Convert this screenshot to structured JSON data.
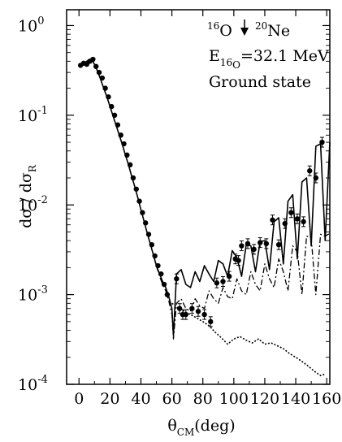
{
  "chart_data": {
    "type": "scatter",
    "xlabel": "θ",
    "xlabel_sub": "CM",
    "xlabel_suffix": "(deg)",
    "ylabel": "dσ / dσ",
    "ylabel_sub": "R",
    "log_y": true,
    "xlim": [
      -8,
      162
    ],
    "ylim": [
      0.0001,
      1.5
    ],
    "x_ticks": [
      0,
      20,
      40,
      60,
      80,
      100,
      120,
      140,
      160
    ],
    "y_ticks": [
      {
        "value": 1,
        "base": "10",
        "exp": "0"
      },
      {
        "value": 0.1,
        "base": "10",
        "exp": "-1"
      },
      {
        "value": 0.01,
        "base": "10",
        "exp": "-2"
      },
      {
        "value": 0.001,
        "base": "10",
        "exp": "-3"
      },
      {
        "value": 0.0001,
        "base": "10",
        "exp": "-4"
      }
    ],
    "annotations": {
      "reaction_sup1": "16",
      "reaction_sym1": "O",
      "reaction_sup2": "20",
      "reaction_sym2": "Ne",
      "energy_main": "E",
      "energy_sub1": "16",
      "energy_sub2": "O",
      "energy_value": "=32.1 MeV",
      "state": "Ground state"
    },
    "series": [
      {
        "style": "points",
        "x": [
          1,
          3,
          5,
          7,
          9,
          11,
          13,
          15,
          17,
          19,
          21,
          23,
          25,
          27,
          29,
          31,
          33,
          35,
          37,
          39,
          41,
          43,
          45,
          47,
          49,
          51,
          53,
          55,
          57,
          63,
          65,
          67,
          69,
          73,
          77,
          81,
          85,
          89,
          93,
          97,
          101,
          103,
          105,
          109,
          113,
          117,
          121,
          125,
          129,
          133,
          137,
          141,
          145,
          149,
          153,
          157
        ],
        "y": [
          0.36,
          0.38,
          0.37,
          0.4,
          0.42,
          0.35,
          0.3,
          0.26,
          0.2,
          0.16,
          0.125,
          0.1,
          0.078,
          0.06,
          0.048,
          0.036,
          0.028,
          0.02,
          0.015,
          0.011,
          0.0082,
          0.0063,
          0.0047,
          0.0036,
          0.0027,
          0.0021,
          0.0017,
          0.0013,
          0.001,
          0.0015,
          0.0007,
          0.0006,
          0.0006,
          0.0007,
          0.00065,
          0.0006,
          0.0005,
          0.00135,
          0.0014,
          0.0016,
          0.0025,
          0.0024,
          0.0035,
          0.0037,
          0.0032,
          0.0038,
          0.0037,
          0.0068,
          0.0036,
          0.0062,
          0.0082,
          0.007,
          0.0065,
          0.024,
          0.02,
          0.05
        ]
      },
      {
        "style": "solid",
        "x": [
          0,
          2,
          4,
          6,
          8,
          10,
          12,
          14,
          16,
          18,
          20,
          22,
          24,
          26,
          28,
          30,
          32,
          34,
          36,
          38,
          40,
          42,
          44,
          46,
          48,
          50,
          52,
          54,
          56,
          58,
          60,
          61,
          63,
          66,
          69,
          72,
          75,
          78,
          81,
          84,
          87,
          90,
          93,
          96,
          99,
          102,
          105,
          108,
          111,
          114,
          117,
          120,
          123,
          126,
          129,
          132,
          135,
          138,
          141,
          144,
          147,
          150,
          153,
          156,
          159,
          162
        ],
        "y": [
          0.36,
          0.38,
          0.39,
          0.41,
          0.42,
          0.37,
          0.31,
          0.25,
          0.2,
          0.16,
          0.125,
          0.098,
          0.077,
          0.06,
          0.047,
          0.036,
          0.028,
          0.021,
          0.016,
          0.012,
          0.0088,
          0.0066,
          0.0049,
          0.0037,
          0.0028,
          0.0021,
          0.0017,
          0.0014,
          0.0012,
          0.00095,
          0.0007,
          0.00035,
          0.0017,
          0.0019,
          0.0013,
          0.0012,
          0.0018,
          0.0014,
          0.0021,
          0.0017,
          0.0014,
          0.0024,
          0.0022,
          0.0016,
          0.0031,
          0.0026,
          0.0016,
          0.0036,
          0.0035,
          0.0018,
          0.0039,
          0.004,
          0.0019,
          0.0065,
          0.0072,
          0.0022,
          0.011,
          0.013,
          0.0025,
          0.018,
          0.02,
          0.0035,
          0.045,
          0.048,
          0.004,
          0.05
        ]
      },
      {
        "style": "dashdot",
        "x": [
          48,
          50,
          52,
          54,
          56,
          58,
          60,
          61,
          63,
          66,
          69,
          72,
          75,
          78,
          81,
          84,
          87,
          90,
          93,
          96,
          99,
          102,
          105,
          108,
          111,
          114,
          117,
          120,
          123,
          126,
          129,
          132,
          135,
          138,
          141,
          144,
          147,
          150,
          153,
          156,
          159,
          162
        ],
        "y": [
          0.0028,
          0.0021,
          0.0016,
          0.0013,
          0.0011,
          0.00085,
          0.0006,
          0.00032,
          0.0008,
          0.0009,
          0.0007,
          0.00065,
          0.0009,
          0.00075,
          0.0007,
          0.0011,
          0.0009,
          0.0008,
          0.0012,
          0.00095,
          0.0009,
          0.0015,
          0.0011,
          0.001,
          0.0018,
          0.0013,
          0.0011,
          0.0022,
          0.0015,
          0.0012,
          0.0025,
          0.0018,
          0.0011,
          0.0035,
          0.003,
          0.001,
          0.0045,
          0.0043,
          0.001,
          0.0047,
          0.0045,
          0.0048
        ]
      },
      {
        "style": "dotted",
        "x": [
          60,
          64,
          68,
          72,
          76,
          80,
          84,
          88,
          92,
          96,
          100,
          104,
          108,
          112,
          116,
          120,
          124,
          128,
          132,
          136,
          140,
          144,
          148,
          152,
          156,
          159
        ],
        "y": [
          0.0008,
          0.00072,
          0.00065,
          0.0006,
          0.00055,
          0.0005,
          0.00045,
          0.00038,
          0.00033,
          0.00028,
          0.00032,
          0.00034,
          0.00031,
          0.00029,
          0.00032,
          0.00028,
          0.00029,
          0.00027,
          0.00025,
          0.00022,
          0.0002,
          0.00018,
          0.00016,
          0.00014,
          0.000125,
          0.00013
        ]
      }
    ]
  }
}
